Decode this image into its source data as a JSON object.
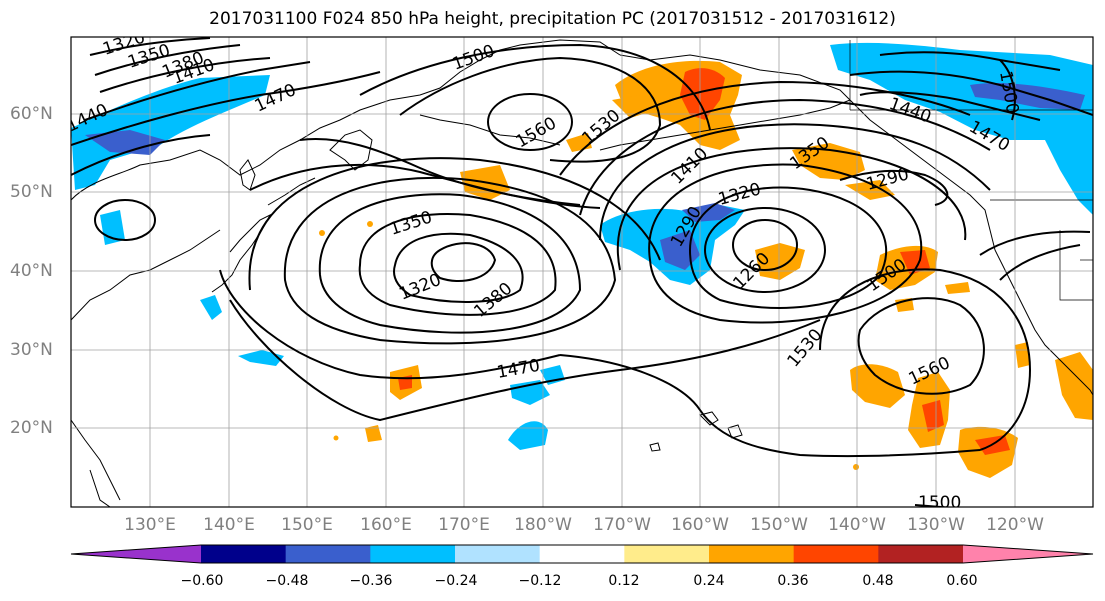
{
  "title": "2017031100 F024 850 hPa height, precipitation PC (2017031512 - 2017031612)",
  "lat_labels": [
    "60°N",
    "50°N",
    "40°N",
    "30°N",
    "20°N"
  ],
  "lon_labels": [
    "130°E",
    "140°E",
    "150°E",
    "160°E",
    "170°E",
    "180°W",
    "170°W",
    "160°W",
    "150°W",
    "140°W",
    "130°W",
    "120°W"
  ],
  "contour_labels": [
    "1320",
    "1350",
    "1380",
    "1410",
    "1440",
    "1470",
    "1500",
    "1560",
    "1530",
    "1410",
    "1350",
    "1320",
    "1290",
    "1290",
    "1260",
    "1350",
    "1320",
    "1380",
    "1470",
    "1530",
    "1500",
    "1560",
    "1440",
    "1470",
    "1500",
    "1500"
  ],
  "colorbar": {
    "colors": [
      "#9932cc",
      "#00008b",
      "#3a5fcd",
      "#00bfff",
      "#b0e2ff",
      "#ffffff",
      "#ffec8b",
      "#ffa500",
      "#ff4500",
      "#b22222",
      "#ff82ab"
    ],
    "ticks": [
      "−0.60",
      "−0.48",
      "−0.36",
      "−0.24",
      "−0.12",
      "0.12",
      "0.24",
      "0.36",
      "0.48",
      "0.60"
    ]
  }
}
